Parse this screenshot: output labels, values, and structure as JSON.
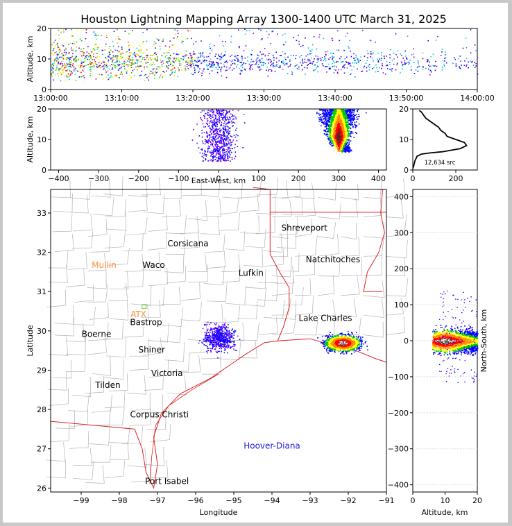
{
  "chart_data": [
    {
      "id": "altitude_time",
      "type": "scatter",
      "title": "Houston Lightning Mapping Array 1300-1400 UTC March 31, 2025",
      "ylabel": "Altitude, km",
      "xlabel": "",
      "x_ticks": [
        "13:00:00",
        "13:10:00",
        "13:20:00",
        "13:30:00",
        "13:40:00",
        "13:50:00",
        "14:00:00"
      ],
      "xlim_minutes": [
        0,
        60
      ],
      "ylim": [
        0,
        20
      ],
      "y_ticks": [
        0,
        10,
        20
      ],
      "density_profile": [
        [
          0,
          1.0
        ],
        [
          5,
          0.95
        ],
        [
          10,
          0.85
        ],
        [
          15,
          0.75
        ],
        [
          20,
          0.62
        ],
        [
          25,
          0.5
        ],
        [
          30,
          0.42
        ],
        [
          35,
          0.38
        ],
        [
          40,
          0.4
        ],
        [
          45,
          0.32
        ],
        [
          50,
          0.22
        ],
        [
          55,
          0.18
        ],
        [
          60,
          0.15
        ]
      ],
      "altitude_center_km": 9,
      "altitude_spread_km": 3
    },
    {
      "id": "altitude_eastwest",
      "type": "scatter",
      "xlabel": "East-West, km",
      "ylabel": "Altitude, km",
      "xlim": [
        -420,
        420
      ],
      "ylim": [
        0,
        20
      ],
      "x_ticks": [
        -400,
        -300,
        -200,
        -100,
        0,
        100,
        200,
        300,
        400
      ],
      "y_ticks": [
        0,
        10,
        20
      ],
      "clusters": [
        {
          "x_center": 0,
          "x_spread": 35,
          "alt_min": 3,
          "alt_max": 20,
          "density": "sparse"
        },
        {
          "x_center": 300,
          "x_spread": 30,
          "alt_min": 6,
          "alt_max": 20,
          "density": "dense"
        }
      ]
    },
    {
      "id": "altitude_histogram",
      "type": "line",
      "xlim": [
        0,
        300
      ],
      "ylim": [
        0,
        20
      ],
      "x_ticks": [
        0,
        200
      ],
      "y_ticks": [
        0,
        10,
        20
      ],
      "annotation": "12,634 src",
      "profile": [
        [
          0,
          0.5
        ],
        [
          5,
          1.5
        ],
        [
          10,
          3
        ],
        [
          20,
          4.5
        ],
        [
          40,
          5.2
        ],
        [
          80,
          5.6
        ],
        [
          140,
          6
        ],
        [
          180,
          6.5
        ],
        [
          220,
          7
        ],
        [
          250,
          8
        ],
        [
          240,
          9
        ],
        [
          200,
          10
        ],
        [
          160,
          11
        ],
        [
          150,
          12
        ],
        [
          130,
          13
        ],
        [
          120,
          14
        ],
        [
          100,
          15
        ],
        [
          80,
          16
        ],
        [
          60,
          17
        ],
        [
          50,
          18
        ],
        [
          40,
          19
        ],
        [
          30,
          19.5
        ]
      ]
    },
    {
      "id": "plan_view",
      "type": "scatter",
      "xlabel": "Longitude",
      "ylabel": "Latitude",
      "xlim": [
        -99.8,
        -91
      ],
      "ylim": [
        25.9,
        33.6
      ],
      "x_ticks": [
        -99,
        -98,
        -97,
        -96,
        -95,
        -94,
        -93,
        -92,
        -91
      ],
      "y_ticks": [
        26,
        27,
        28,
        29,
        30,
        31,
        32,
        33
      ],
      "cities": [
        {
          "name": "Shreveport",
          "lon": -93.15,
          "lat": 32.55,
          "color": "#000000"
        },
        {
          "name": "Corsicana",
          "lon": -96.2,
          "lat": 32.15,
          "color": "#000000"
        },
        {
          "name": "Natchitoches",
          "lon": -92.4,
          "lat": 31.75,
          "color": "#000000"
        },
        {
          "name": "Mullin",
          "lon": -98.4,
          "lat": 31.6,
          "color": "#ff8c3c"
        },
        {
          "name": "Waco",
          "lon": -97.1,
          "lat": 31.6,
          "color": "#000000"
        },
        {
          "name": "Lufkin",
          "lon": -94.55,
          "lat": 31.4,
          "color": "#000000"
        },
        {
          "name": "ATX",
          "lon": -97.5,
          "lat": 30.35,
          "color": "#ff8c3c"
        },
        {
          "name": "Lake Charles",
          "lon": -92.6,
          "lat": 30.25,
          "color": "#000000"
        },
        {
          "name": "Bastrop",
          "lon": -97.3,
          "lat": 30.15,
          "color": "#000000"
        },
        {
          "name": "Boerne",
          "lon": -98.6,
          "lat": 29.85,
          "color": "#000000"
        },
        {
          "name": "Shiner",
          "lon": -97.15,
          "lat": 29.45,
          "color": "#000000"
        },
        {
          "name": "Victoria",
          "lon": -96.75,
          "lat": 28.85,
          "color": "#000000"
        },
        {
          "name": "Tilden",
          "lon": -98.3,
          "lat": 28.55,
          "color": "#000000"
        },
        {
          "name": "Corpus Christi",
          "lon": -96.95,
          "lat": 27.8,
          "color": "#000000"
        },
        {
          "name": "Hoover-Diana",
          "lon": -94.0,
          "lat": 27.0,
          "color": "#1a1adc"
        },
        {
          "name": "Port Isabel",
          "lon": -96.75,
          "lat": 26.1,
          "color": "#000000"
        }
      ],
      "clusters": [
        {
          "lon": -95.4,
          "lat": 29.85,
          "lon_spread": 0.35,
          "lat_spread": 0.3,
          "density": "sparse"
        },
        {
          "lon": -92.15,
          "lat": 29.7,
          "lon_spread": 0.4,
          "lat_spread": 0.18,
          "density": "dense"
        }
      ]
    },
    {
      "id": "northsouth_altitude",
      "type": "scatter",
      "xlabel": "Altitude, km",
      "ylabel": "North-South, km",
      "xlim": [
        0,
        20
      ],
      "ylim": [
        -420,
        420
      ],
      "x_ticks": [
        0,
        10,
        20
      ],
      "y_ticks": [
        -400,
        -300,
        -200,
        -100,
        0,
        100,
        200,
        300,
        400
      ],
      "clusters": [
        {
          "alt_min": 6,
          "alt_max": 20,
          "ns_center": 0,
          "ns_spread": 30,
          "density": "dense"
        }
      ]
    }
  ],
  "colors": {
    "state_border": "#dd2222",
    "county_border": "#b4b4b4",
    "coast": "#dd2222",
    "station": "#66cc33"
  }
}
